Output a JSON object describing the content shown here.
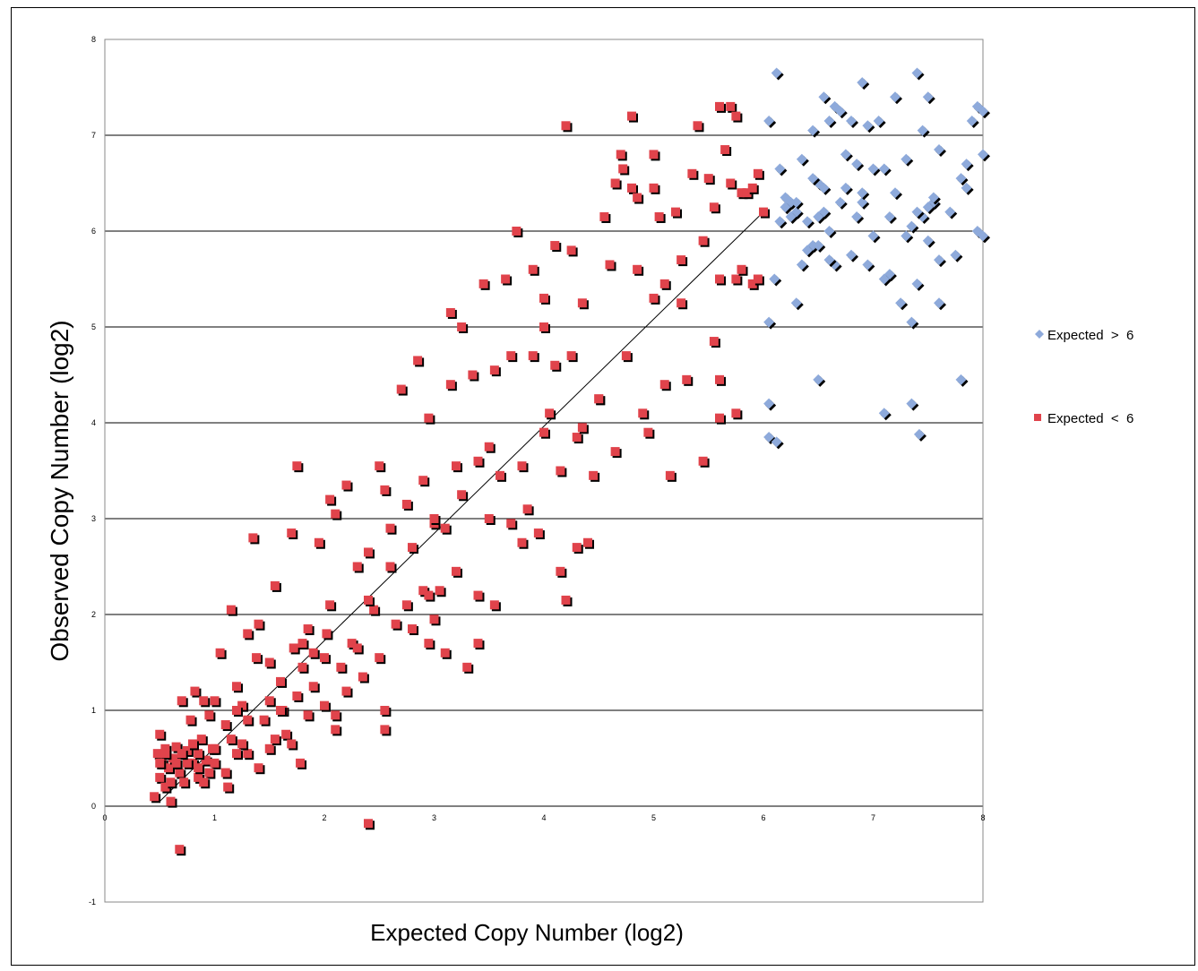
{
  "chart_data": {
    "type": "scatter",
    "xlabel": "Expected Copy Number (log2)",
    "ylabel": "Observed Copy Number (log2)",
    "xlim": [
      0,
      8
    ],
    "ylim": [
      -1,
      8
    ],
    "x_ticks": [
      "0",
      "1",
      "2",
      "3",
      "4",
      "5",
      "6",
      "7",
      "8"
    ],
    "y_ticks": [
      "-1",
      "0",
      "1",
      "2",
      "3",
      "4",
      "5",
      "6",
      "7",
      "8"
    ],
    "grid": "horizontal",
    "legend_position": "right",
    "trendline": {
      "x": [
        0.5,
        6.0
      ],
      "y": [
        0.05,
        6.2
      ]
    },
    "series": [
      {
        "name": "Expected  >  6",
        "marker": "diamond",
        "color": "#8eaadb",
        "points": [
          [
            6.05,
            7.15
          ],
          [
            6.12,
            7.65
          ],
          [
            6.15,
            6.65
          ],
          [
            6.2,
            6.35
          ],
          [
            6.25,
            6.3
          ],
          [
            6.3,
            6.2
          ],
          [
            6.35,
            6.75
          ],
          [
            6.4,
            6.1
          ],
          [
            6.45,
            7.05
          ],
          [
            6.5,
            6.5
          ],
          [
            6.55,
            7.4
          ],
          [
            6.6,
            7.15
          ],
          [
            6.65,
            7.3
          ],
          [
            6.7,
            7.25
          ],
          [
            6.75,
            6.8
          ],
          [
            6.8,
            7.15
          ],
          [
            6.85,
            6.7
          ],
          [
            6.9,
            7.55
          ],
          [
            6.95,
            7.1
          ],
          [
            7.0,
            6.65
          ],
          [
            7.05,
            7.15
          ],
          [
            7.1,
            6.65
          ],
          [
            7.2,
            7.4
          ],
          [
            7.3,
            6.75
          ],
          [
            7.4,
            7.65
          ],
          [
            7.45,
            7.05
          ],
          [
            7.5,
            7.4
          ],
          [
            7.6,
            6.85
          ],
          [
            7.7,
            6.2
          ],
          [
            7.8,
            6.55
          ],
          [
            7.85,
            6.7
          ],
          [
            7.9,
            7.15
          ],
          [
            7.95,
            7.3
          ],
          [
            8.0,
            7.25
          ],
          [
            8.0,
            6.8
          ],
          [
            7.95,
            6.0
          ],
          [
            8.0,
            5.95
          ],
          [
            7.85,
            6.45
          ],
          [
            7.75,
            5.75
          ],
          [
            7.6,
            5.7
          ],
          [
            7.55,
            6.3
          ],
          [
            7.5,
            6.25
          ],
          [
            7.45,
            6.15
          ],
          [
            7.4,
            6.2
          ],
          [
            7.35,
            6.05
          ],
          [
            7.3,
            5.95
          ],
          [
            7.25,
            5.25
          ],
          [
            7.15,
            5.55
          ],
          [
            7.1,
            5.5
          ],
          [
            7.0,
            5.95
          ],
          [
            6.95,
            5.65
          ],
          [
            6.9,
            6.3
          ],
          [
            6.85,
            6.15
          ],
          [
            6.8,
            5.75
          ],
          [
            6.75,
            6.45
          ],
          [
            6.7,
            6.3
          ],
          [
            6.65,
            5.65
          ],
          [
            6.6,
            5.7
          ],
          [
            6.55,
            6.2
          ],
          [
            6.5,
            6.15
          ],
          [
            6.45,
            5.85
          ],
          [
            6.4,
            5.8
          ],
          [
            6.35,
            5.65
          ],
          [
            6.3,
            5.25
          ],
          [
            6.25,
            6.15
          ],
          [
            6.2,
            6.25
          ],
          [
            6.15,
            6.1
          ],
          [
            6.1,
            5.5
          ],
          [
            6.05,
            5.05
          ],
          [
            6.05,
            4.2
          ],
          [
            6.05,
            3.85
          ],
          [
            6.12,
            3.8
          ],
          [
            6.5,
            4.45
          ],
          [
            7.1,
            4.1
          ],
          [
            7.35,
            4.2
          ],
          [
            7.42,
            3.88
          ],
          [
            7.8,
            4.45
          ],
          [
            7.6,
            5.25
          ],
          [
            7.35,
            5.05
          ],
          [
            7.4,
            5.45
          ],
          [
            7.55,
            6.35
          ],
          [
            7.5,
            5.9
          ],
          [
            6.9,
            6.4
          ],
          [
            6.6,
            6.0
          ],
          [
            6.55,
            6.45
          ],
          [
            6.5,
            5.85
          ],
          [
            6.45,
            6.55
          ],
          [
            6.3,
            6.3
          ],
          [
            7.2,
            6.4
          ],
          [
            7.15,
            6.15
          ]
        ]
      },
      {
        "name": "Expected  <  6",
        "marker": "square",
        "color": "#e0434b",
        "points": [
          [
            0.45,
            0.1
          ],
          [
            0.48,
            0.55
          ],
          [
            0.5,
            0.3
          ],
          [
            0.5,
            0.75
          ],
          [
            0.52,
            0.45
          ],
          [
            0.55,
            0.2
          ],
          [
            0.55,
            0.6
          ],
          [
            0.58,
            0.4
          ],
          [
            0.6,
            0.05
          ],
          [
            0.62,
            0.5
          ],
          [
            0.65,
            0.62
          ],
          [
            0.68,
            0.35
          ],
          [
            0.7,
            1.1
          ],
          [
            0.72,
            0.25
          ],
          [
            0.75,
            0.58
          ],
          [
            0.78,
            0.9
          ],
          [
            0.8,
            0.45
          ],
          [
            0.82,
            1.2
          ],
          [
            0.85,
            0.3
          ],
          [
            0.88,
            0.7
          ],
          [
            0.9,
            1.1
          ],
          [
            0.92,
            0.48
          ],
          [
            0.95,
            0.95
          ],
          [
            0.98,
            0.6
          ],
          [
            1.0,
            0.45
          ],
          [
            1.05,
            1.6
          ],
          [
            1.1,
            0.85
          ],
          [
            1.12,
            0.2
          ],
          [
            1.15,
            0.7
          ],
          [
            1.15,
            2.05
          ],
          [
            1.2,
            1.25
          ],
          [
            1.25,
            1.05
          ],
          [
            1.3,
            1.8
          ],
          [
            1.3,
            0.55
          ],
          [
            1.35,
            2.8
          ],
          [
            1.38,
            1.55
          ],
          [
            1.4,
            1.9
          ],
          [
            1.45,
            0.9
          ],
          [
            1.5,
            0.6
          ],
          [
            1.5,
            1.5
          ],
          [
            1.55,
            2.3
          ],
          [
            1.6,
            1.3
          ],
          [
            1.62,
            1.0
          ],
          [
            1.65,
            0.75
          ],
          [
            1.7,
            2.85
          ],
          [
            1.72,
            1.65
          ],
          [
            1.75,
            3.55
          ],
          [
            1.75,
            1.15
          ],
          [
            1.78,
            0.45
          ],
          [
            1.8,
            1.45
          ],
          [
            1.85,
            1.85
          ],
          [
            1.9,
            1.25
          ],
          [
            1.95,
            2.75
          ],
          [
            2.0,
            1.05
          ],
          [
            2.02,
            1.8
          ],
          [
            2.05,
            3.2
          ],
          [
            2.1,
            0.8
          ],
          [
            2.1,
            3.05
          ],
          [
            2.15,
            1.45
          ],
          [
            2.2,
            3.35
          ],
          [
            2.25,
            1.7
          ],
          [
            2.3,
            2.5
          ],
          [
            2.35,
            1.35
          ],
          [
            2.4,
            2.65
          ],
          [
            2.45,
            2.05
          ],
          [
            2.5,
            3.55
          ],
          [
            2.5,
            1.55
          ],
          [
            2.55,
            3.3
          ],
          [
            2.55,
            1.0
          ],
          [
            2.55,
            0.8
          ],
          [
            2.6,
            2.5
          ],
          [
            2.65,
            1.9
          ],
          [
            2.7,
            4.35
          ],
          [
            2.75,
            3.15
          ],
          [
            2.75,
            2.1
          ],
          [
            2.8,
            1.85
          ],
          [
            2.85,
            4.65
          ],
          [
            2.9,
            3.4
          ],
          [
            2.9,
            2.25
          ],
          [
            2.95,
            1.7
          ],
          [
            2.95,
            4.05
          ],
          [
            3.0,
            2.95
          ],
          [
            3.05,
            2.25
          ],
          [
            3.1,
            1.6
          ],
          [
            3.1,
            2.9
          ],
          [
            3.15,
            5.15
          ],
          [
            3.15,
            4.4
          ],
          [
            3.2,
            2.45
          ],
          [
            3.25,
            3.25
          ],
          [
            3.25,
            5.0
          ],
          [
            3.3,
            1.45
          ],
          [
            3.35,
            4.5
          ],
          [
            3.4,
            3.6
          ],
          [
            3.4,
            2.2
          ],
          [
            3.4,
            1.7
          ],
          [
            3.45,
            5.45
          ],
          [
            3.5,
            3.75
          ],
          [
            3.55,
            4.55
          ],
          [
            3.55,
            2.1
          ],
          [
            3.6,
            3.45
          ],
          [
            3.65,
            5.5
          ],
          [
            3.7,
            4.7
          ],
          [
            3.7,
            2.95
          ],
          [
            3.75,
            6.0
          ],
          [
            3.8,
            3.55
          ],
          [
            3.85,
            3.1
          ],
          [
            3.9,
            4.7
          ],
          [
            3.9,
            5.6
          ],
          [
            3.95,
            2.85
          ],
          [
            4.0,
            5.3
          ],
          [
            4.0,
            5.0
          ],
          [
            4.05,
            4.1
          ],
          [
            4.1,
            5.85
          ],
          [
            4.1,
            4.6
          ],
          [
            4.15,
            3.5
          ],
          [
            4.15,
            2.45
          ],
          [
            4.2,
            2.15
          ],
          [
            4.2,
            7.1
          ],
          [
            4.25,
            5.8
          ],
          [
            4.25,
            4.7
          ],
          [
            4.3,
            3.85
          ],
          [
            4.3,
            2.7
          ],
          [
            4.35,
            5.25
          ],
          [
            4.35,
            3.95
          ],
          [
            4.4,
            2.75
          ],
          [
            4.45,
            3.45
          ],
          [
            4.5,
            4.25
          ],
          [
            4.55,
            6.15
          ],
          [
            4.6,
            5.65
          ],
          [
            4.65,
            6.5
          ],
          [
            4.65,
            3.7
          ],
          [
            4.7,
            6.8
          ],
          [
            4.72,
            6.65
          ],
          [
            4.75,
            4.7
          ],
          [
            4.8,
            7.2
          ],
          [
            4.8,
            6.45
          ],
          [
            4.85,
            6.35
          ],
          [
            4.85,
            5.6
          ],
          [
            4.9,
            4.1
          ],
          [
            4.95,
            3.9
          ],
          [
            5.0,
            6.45
          ],
          [
            5.0,
            6.8
          ],
          [
            5.05,
            6.15
          ],
          [
            5.1,
            5.45
          ],
          [
            5.1,
            4.4
          ],
          [
            5.15,
            3.45
          ],
          [
            5.2,
            6.2
          ],
          [
            5.25,
            5.7
          ],
          [
            5.3,
            4.45
          ],
          [
            5.35,
            6.6
          ],
          [
            5.4,
            7.1
          ],
          [
            5.45,
            5.9
          ],
          [
            5.45,
            3.6
          ],
          [
            5.5,
            6.55
          ],
          [
            5.55,
            4.85
          ],
          [
            5.6,
            7.3
          ],
          [
            5.6,
            5.5
          ],
          [
            5.6,
            4.45
          ],
          [
            5.65,
            6.85
          ],
          [
            5.7,
            7.3
          ],
          [
            5.7,
            6.5
          ],
          [
            5.75,
            7.2
          ],
          [
            5.75,
            5.5
          ],
          [
            5.8,
            6.4
          ],
          [
            5.8,
            5.6
          ],
          [
            5.85,
            6.4
          ],
          [
            5.9,
            6.45
          ],
          [
            5.9,
            5.45
          ],
          [
            5.95,
            6.6
          ],
          [
            5.95,
            5.5
          ],
          [
            6.0,
            6.2
          ],
          [
            5.6,
            4.05
          ],
          [
            5.75,
            4.1
          ],
          [
            5.55,
            6.25
          ],
          [
            5.25,
            5.25
          ],
          [
            5.0,
            5.3
          ],
          [
            4.5,
            4.25
          ],
          [
            4.0,
            3.9
          ],
          [
            3.8,
            2.75
          ],
          [
            3.5,
            3.0
          ],
          [
            3.2,
            3.55
          ],
          [
            3.0,
            3.0
          ],
          [
            2.8,
            2.7
          ],
          [
            2.6,
            2.9
          ],
          [
            2.4,
            2.15
          ],
          [
            2.3,
            1.65
          ],
          [
            2.2,
            1.2
          ],
          [
            2.1,
            0.95
          ],
          [
            2.0,
            1.55
          ],
          [
            1.9,
            1.6
          ],
          [
            1.8,
            1.7
          ],
          [
            1.7,
            0.65
          ],
          [
            1.6,
            1.0
          ],
          [
            1.5,
            1.1
          ],
          [
            1.4,
            0.4
          ],
          [
            1.3,
            0.9
          ],
          [
            1.25,
            0.65
          ],
          [
            1.2,
            0.55
          ],
          [
            1.1,
            0.35
          ],
          [
            1.0,
            0.6
          ],
          [
            0.95,
            0.35
          ],
          [
            0.9,
            0.25
          ],
          [
            0.85,
            0.55
          ],
          [
            0.8,
            0.65
          ],
          [
            0.75,
            0.45
          ],
          [
            0.7,
            0.55
          ],
          [
            0.65,
            0.45
          ],
          [
            0.6,
            0.25
          ],
          [
            0.55,
            0.55
          ],
          [
            0.5,
            0.45
          ],
          [
            0.68,
            -0.45
          ],
          [
            2.4,
            -0.18
          ],
          [
            3.0,
            1.95
          ],
          [
            2.95,
            2.2
          ],
          [
            2.05,
            2.1
          ],
          [
            1.85,
            0.95
          ],
          [
            1.55,
            0.7
          ],
          [
            1.2,
            1.0
          ],
          [
            1.0,
            1.1
          ],
          [
            0.85,
            0.4
          ]
        ]
      }
    ]
  }
}
